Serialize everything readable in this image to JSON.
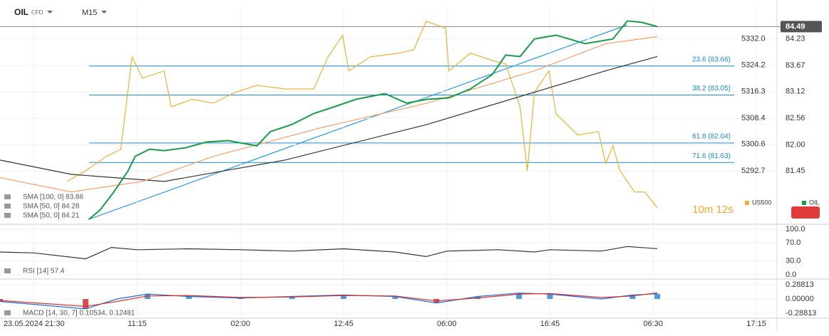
{
  "header": {
    "symbol": "OIL",
    "kind": "CFD",
    "interval": "M15"
  },
  "timer": "10m 12s",
  "chart_data": [
    {
      "type": "line",
      "xlim": [
        -0.33,
        7.2
      ],
      "xticks": [
        {
          "value": 0,
          "label": "23.05.2024 21:30"
        },
        {
          "value": 1,
          "label": "11:15"
        },
        {
          "value": 2,
          "label": "02:00"
        },
        {
          "value": 3,
          "label": "12:45"
        },
        {
          "value": 4,
          "label": "06:00"
        },
        {
          "value": 5,
          "label": "16:45"
        },
        {
          "value": 6,
          "label": "06:30"
        },
        {
          "value": 7,
          "label": "17:15"
        }
      ],
      "ylim": [
        80.33,
        84.9
      ],
      "yticks": [
        84.23,
        83.67,
        83.12,
        82.56,
        {
          "value": 82,
          "label": "82.00"
        },
        81.45
      ],
      "y2lim": [
        5276.8,
        5341.5
      ],
      "y2ticks": [
        {
          "value": 5332,
          "label": "5332.0"
        },
        5324.2,
        5316.3,
        5308.4,
        5300.6,
        5292.7
      ],
      "last_price": 84.49,
      "levels": [
        {
          "value": 83.66,
          "label": "23.6 (83.66)"
        },
        {
          "value": 83.05,
          "label": "38.2 (83.05)"
        },
        {
          "value": 82.04,
          "label": "61.8 (82.04)"
        },
        {
          "value": 81.63,
          "label": "71.6 (81.63)"
        }
      ],
      "level_color": "#1e88c8",
      "labels": [
        "SMA [100, 0] 83.86",
        "SMA [50, 0] 84.28",
        "SMA [50, 0] 84.21"
      ],
      "grid": true,
      "series": [
        {
          "name": "US500",
          "color": "#e8b23a",
          "axis": "y2",
          "x": [
            0.32,
            0.5,
            0.7,
            0.84,
            0.95,
            1.05,
            1.26,
            1.33,
            1.53,
            1.74,
            1.95,
            2.16,
            2.43,
            2.71,
            2.85,
            2.99,
            3.05,
            3.26,
            3.54,
            3.68,
            3.8,
            3.99,
            4.02,
            4.23,
            4.44,
            4.57,
            4.71,
            4.78,
            4.85,
            4.99,
            5.06,
            5.27,
            5.47,
            5.54,
            5.61,
            5.68,
            5.82,
            5.92,
            6.04
          ],
          "values": [
            5289.6,
            5292.7,
            5297.0,
            5299.1,
            5326.7,
            5320.3,
            5322.5,
            5311.8,
            5314.0,
            5312.9,
            5316.1,
            5318.2,
            5317.1,
            5317.1,
            5326.7,
            5333.1,
            5322.5,
            5326.7,
            5327.8,
            5328.8,
            5337.3,
            5335.2,
            5322.5,
            5327.8,
            5325.6,
            5324.6,
            5311.8,
            5292.7,
            5316.1,
            5322.5,
            5309.7,
            5303.4,
            5304.4,
            5294.9,
            5300.2,
            5292.7,
            5286.4,
            5286.4,
            5281.7
          ]
        },
        {
          "color": "#333333",
          "x": [
            -0.33,
            0.36,
            1.26,
            2.43,
            3.81,
            4.85,
            5.54,
            6.04
          ],
          "values": [
            81.68,
            81.38,
            81.23,
            81.68,
            82.43,
            83.11,
            83.56,
            83.86
          ]
        },
        {
          "color": "#f0a070",
          "x": [
            -0.33,
            0.36,
            1.05,
            1.74,
            2.78,
            3.81,
            4.85,
            5.54,
            6.04
          ],
          "values": [
            81.31,
            81.01,
            81.23,
            81.76,
            82.36,
            82.88,
            83.56,
            84.13,
            84.28
          ]
        },
        {
          "name": "OIL",
          "color": "#1a9a4a",
          "x": [
            0.53,
            0.64,
            0.77,
            0.91,
            0.98,
            1.12,
            1.26,
            1.47,
            1.67,
            1.88,
            2.16,
            2.29,
            2.5,
            2.71,
            2.92,
            3.12,
            3.4,
            3.61,
            3.81,
            4.02,
            4.23,
            4.44,
            4.57,
            4.71,
            4.85,
            5.06,
            5.34,
            5.61,
            5.75,
            5.89,
            6.04
          ],
          "values": [
            80.43,
            80.63,
            81.0,
            81.45,
            81.76,
            81.91,
            81.88,
            81.94,
            82.06,
            82.09,
            81.98,
            82.28,
            82.43,
            82.66,
            82.81,
            82.96,
            83.08,
            82.88,
            82.96,
            82.99,
            83.18,
            83.48,
            83.89,
            83.86,
            84.23,
            84.31,
            84.13,
            84.23,
            84.61,
            84.58,
            84.49
          ]
        }
      ]
    },
    {
      "type": "line",
      "label": "RSI [14]  57.4",
      "ylim": [
        0,
        100
      ],
      "yticks": [
        {
          "value": 100,
          "label": "100.0"
        },
        {
          "value": 70,
          "label": "70.0"
        },
        {
          "value": 30,
          "label": "30.0"
        },
        {
          "value": 0,
          "label": "0.0"
        }
      ],
      "series": [
        {
          "color": "#333333",
          "x": [
            -0.33,
            0,
            0.5,
            0.75,
            1,
            1.5,
            2,
            2.5,
            3,
            3.5,
            3.8,
            4,
            4.5,
            4.85,
            5,
            5.5,
            5.75,
            6.04
          ],
          "values": [
            50,
            48,
            35,
            60,
            55,
            57,
            55,
            52,
            57,
            50,
            40,
            52,
            55,
            50,
            55,
            52,
            62,
            57.4
          ]
        }
      ]
    },
    {
      "type": "macd",
      "label": "MACD [14, 30, 7]  0.10534,  0.12481",
      "ylim": [
        -0.36,
        0.36
      ],
      "yticks": [
        0.28813,
        {
          "value": 0,
          "label": "0.00000"
        },
        -0.28813
      ],
      "bar_colors": [
        "#2a7fc8",
        "#c0282d"
      ],
      "series": [
        {
          "color": "#1f6fd1",
          "x": [
            -0.33,
            0.5,
            0.8,
            1.1,
            1.5,
            2,
            2.5,
            3,
            3.5,
            3.9,
            4.3,
            4.7,
            5,
            5.5,
            5.8,
            6.04
          ],
          "values": [
            -0.05,
            -0.2,
            0,
            0.1,
            0.05,
            0.02,
            0.05,
            0.08,
            0.05,
            -0.08,
            0.05,
            0.12,
            0.1,
            0,
            0.08,
            0.105
          ]
        },
        {
          "color": "#d93030",
          "x": [
            -0.33,
            0.5,
            0.8,
            1.1,
            1.5,
            2,
            2.5,
            3,
            3.5,
            3.9,
            4.3,
            4.7,
            5,
            5.5,
            5.8,
            6.04
          ],
          "values": [
            -0.03,
            -0.15,
            -0.05,
            0.06,
            0.07,
            0.03,
            0.04,
            0.07,
            0.06,
            -0.04,
            0.02,
            0.1,
            0.11,
            0.03,
            0.06,
            0.125
          ]
        }
      ]
    }
  ]
}
